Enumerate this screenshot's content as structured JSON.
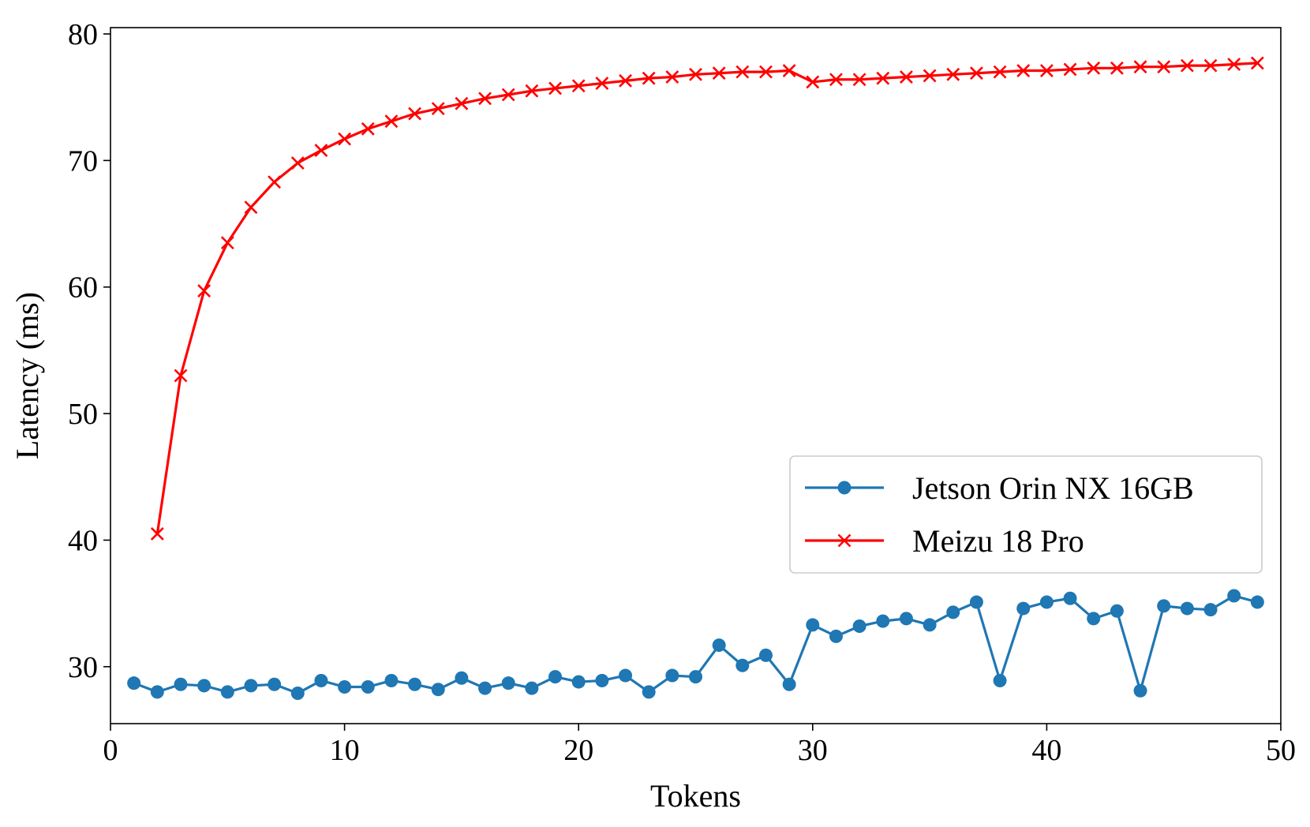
{
  "chart_data": {
    "type": "line",
    "title": "",
    "xlabel": "Tokens",
    "ylabel": "Latency (ms)",
    "xlim": [
      0,
      50
    ],
    "ylim": [
      25.5,
      80.5
    ],
    "xticks": [
      0,
      10,
      20,
      30,
      40,
      50
    ],
    "yticks": [
      30,
      40,
      50,
      60,
      70,
      80
    ],
    "grid": false,
    "legend_position": "center-right",
    "series": [
      {
        "name": "Jetson Orin NX 16GB",
        "color": "#1f77b4",
        "marker": "circle",
        "x": [
          1,
          2,
          3,
          4,
          5,
          6,
          7,
          8,
          9,
          10,
          11,
          12,
          13,
          14,
          15,
          16,
          17,
          18,
          19,
          20,
          21,
          22,
          23,
          24,
          25,
          26,
          27,
          28,
          29,
          30,
          31,
          32,
          33,
          34,
          35,
          36,
          37,
          38,
          39,
          40,
          41,
          42,
          43,
          44,
          45,
          46,
          47,
          48,
          49
        ],
        "values": [
          28.7,
          28.0,
          28.6,
          28.5,
          28.0,
          28.5,
          28.6,
          27.9,
          28.9,
          28.4,
          28.4,
          28.9,
          28.6,
          28.2,
          29.1,
          28.3,
          28.7,
          28.3,
          29.2,
          28.8,
          28.9,
          29.3,
          28.0,
          29.3,
          29.2,
          31.7,
          30.1,
          30.9,
          28.6,
          33.3,
          32.4,
          33.2,
          33.6,
          33.8,
          33.3,
          34.3,
          35.1,
          28.9,
          34.6,
          35.1,
          35.4,
          33.8,
          34.4,
          28.1,
          34.8,
          34.6,
          34.5,
          35.6,
          35.1
        ]
      },
      {
        "name": "Meizu 18 Pro",
        "color": "#ff0000",
        "marker": "x",
        "x": [
          2,
          3,
          4,
          5,
          6,
          7,
          8,
          9,
          10,
          11,
          12,
          13,
          14,
          15,
          16,
          17,
          18,
          19,
          20,
          21,
          22,
          23,
          24,
          25,
          26,
          27,
          28,
          29,
          30,
          31,
          32,
          33,
          34,
          35,
          36,
          37,
          38,
          39,
          40,
          41,
          42,
          43,
          44,
          45,
          46,
          47,
          48,
          49
        ],
        "values": [
          40.5,
          53.0,
          59.7,
          63.5,
          66.3,
          68.3,
          69.8,
          70.8,
          71.7,
          72.5,
          73.1,
          73.7,
          74.1,
          74.5,
          74.9,
          75.2,
          75.5,
          75.7,
          75.9,
          76.1,
          76.3,
          76.5,
          76.6,
          76.8,
          76.9,
          77.0,
          77.0,
          77.1,
          76.2,
          76.4,
          76.4,
          76.5,
          76.6,
          76.7,
          76.8,
          76.9,
          77.0,
          77.1,
          77.1,
          77.2,
          77.3,
          77.3,
          77.4,
          77.4,
          77.5,
          77.5,
          77.6,
          77.7
        ]
      }
    ]
  }
}
